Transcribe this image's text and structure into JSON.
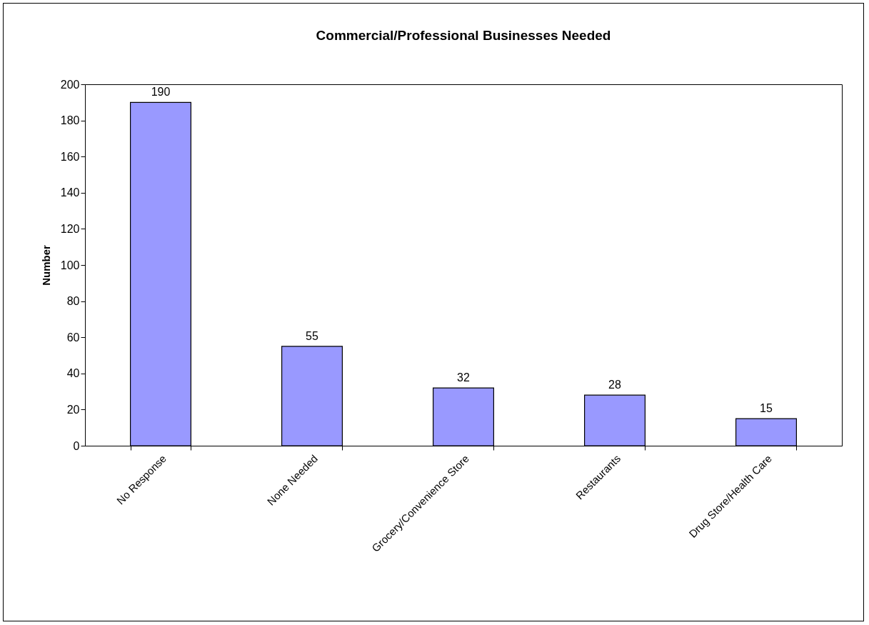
{
  "chart_data": {
    "type": "bar",
    "title": "Commercial/Professional Businesses Needed",
    "ylabel": "Number",
    "categories": [
      "No Response",
      "None Needed",
      "Grocery/Convenience Store",
      "Restaurants",
      "Drug Store/Health Care"
    ],
    "values": [
      190,
      55,
      32,
      28,
      15
    ],
    "color": "#9999ff",
    "ylim": [
      0,
      200
    ],
    "yticks": [
      0,
      20,
      40,
      60,
      80,
      100,
      120,
      140,
      160,
      180,
      200
    ],
    "data_labels": true
  }
}
